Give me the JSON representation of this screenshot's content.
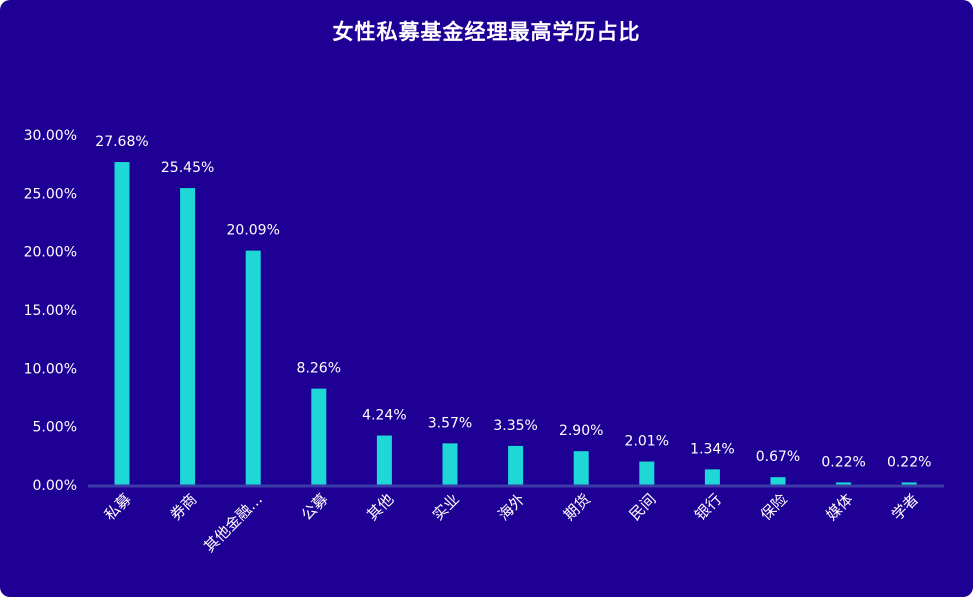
{
  "chart_data": {
    "type": "bar",
    "title": "女性私募基金经理最高学历占比",
    "categories": [
      "私募",
      "券商",
      "其他金融…",
      "公募",
      "其他",
      "实业",
      "海外",
      "期货",
      "民间",
      "银行",
      "保险",
      "媒体",
      "学者"
    ],
    "values": [
      27.68,
      25.45,
      20.09,
      8.26,
      4.24,
      3.57,
      3.35,
      2.9,
      2.01,
      1.34,
      0.67,
      0.22,
      0.22
    ],
    "data_labels": [
      "27.68%",
      "25.45%",
      "20.09%",
      "8.26%",
      "4.24%",
      "3.57%",
      "3.35%",
      "2.90%",
      "2.01%",
      "1.34%",
      "0.67%",
      "0.22%",
      "0.22%"
    ],
    "yticks": [
      "0.00%",
      "5.00%",
      "10.00%",
      "15.00%",
      "20.00%",
      "25.00%",
      "30.00%"
    ],
    "ylim": [
      0,
      30
    ],
    "xlabel": "",
    "ylabel": "",
    "grid": false,
    "legend": "none",
    "colors": {
      "background": "#1e0095",
      "bar": "#1ed8d8",
      "axis": "#3a3aa8",
      "text": "#ffffff"
    }
  }
}
